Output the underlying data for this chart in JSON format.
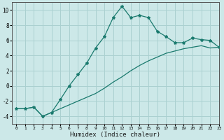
{
  "xlabel": "Humidex (Indice chaleur)",
  "x_upper": [
    0,
    1,
    2,
    3,
    4,
    5,
    6,
    7,
    8,
    9,
    10,
    11,
    12,
    13,
    14,
    15,
    16,
    17,
    18,
    19,
    20,
    21,
    22,
    23
  ],
  "y_upper": [
    -3,
    -3,
    -2.8,
    -4,
    -3.5,
    -1.8,
    0,
    1.5,
    3,
    5,
    6.5,
    9,
    10.5,
    9,
    9.3,
    9,
    7.2,
    6.5,
    5.7,
    5.7,
    6.3,
    6.1,
    6.0,
    5.1
  ],
  "x_lower": [
    0,
    1,
    2,
    3,
    4,
    5,
    6,
    7,
    8,
    9,
    10,
    11,
    12,
    13,
    14,
    15,
    16,
    17,
    18,
    19,
    20,
    21,
    22,
    23
  ],
  "y_lower": [
    -3,
    -3,
    -2.8,
    -4,
    -3.5,
    -3.0,
    -2.5,
    -2.0,
    -1.5,
    -1.0,
    -0.3,
    0.5,
    1.2,
    2.0,
    2.7,
    3.3,
    3.8,
    4.3,
    4.6,
    4.9,
    5.1,
    5.3,
    5.0,
    5.1
  ],
  "line_color": "#1a7a6e",
  "marker": "*",
  "bg_color": "#cce8e8",
  "grid_color": "#aad0d0",
  "ylim": [
    -5,
    11
  ],
  "xlim": [
    -0.5,
    23
  ],
  "yticks": [
    -4,
    -2,
    0,
    2,
    4,
    6,
    8,
    10
  ],
  "xticks": [
    0,
    1,
    2,
    3,
    4,
    5,
    6,
    7,
    8,
    9,
    10,
    11,
    12,
    13,
    14,
    15,
    16,
    17,
    18,
    19,
    20,
    21,
    22,
    23
  ]
}
